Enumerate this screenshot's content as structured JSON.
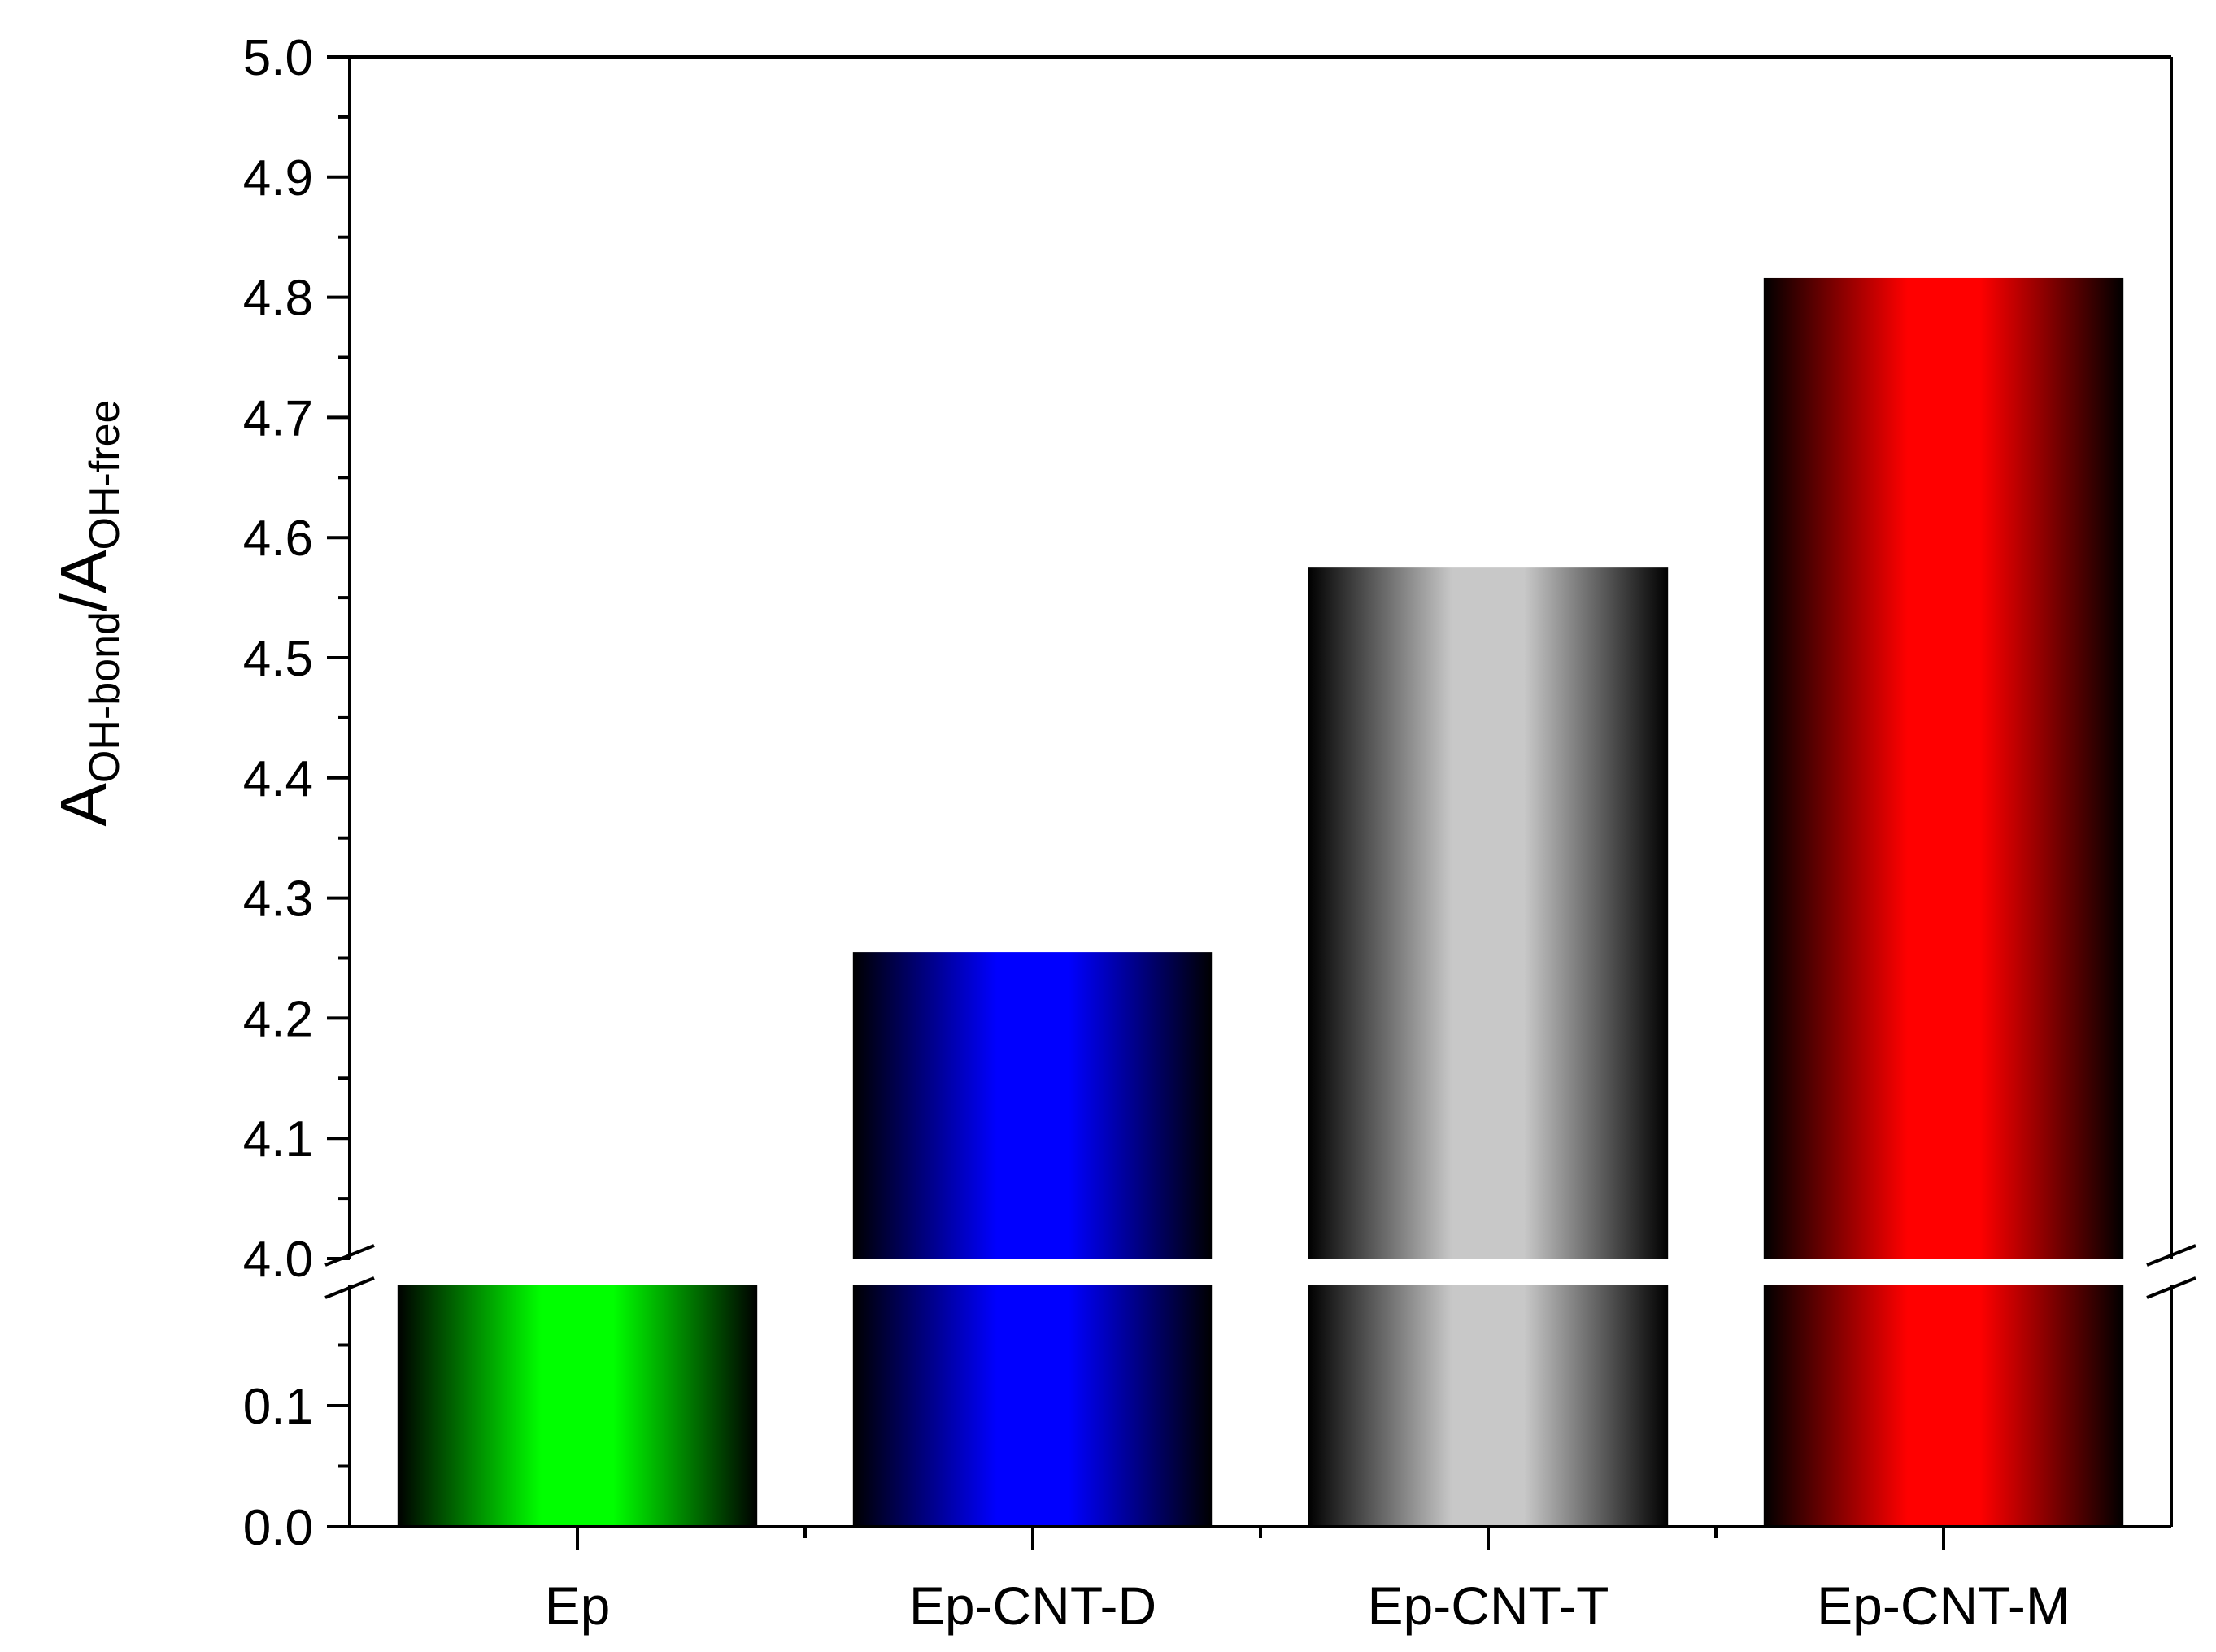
{
  "chart_data": {
    "type": "bar",
    "title": "",
    "xlabel": "",
    "ylabel": {
      "parts": [
        {
          "text": "A",
          "sub": false
        },
        {
          "text": "OH-bond",
          "sub": true
        },
        {
          "text": "/A",
          "sub": false
        },
        {
          "text": "OH-free",
          "sub": true
        }
      ]
    },
    "categories": [
      "Ep",
      "Ep-CNT-D",
      "Ep-CNT-T",
      "Ep-CNT-M"
    ],
    "values": [
      0.2,
      4.255,
      4.575,
      4.816
    ],
    "bar_colors": [
      "#00ff00",
      "#0000ff",
      "#c8c8c8",
      "#ff0000"
    ],
    "y_axis_break": true,
    "y_segments": [
      {
        "ylim": [
          0.0,
          0.2
        ],
        "tick_labels": [
          "0.0",
          "0.1"
        ]
      },
      {
        "ylim": [
          4.0,
          5.0
        ],
        "tick_labels": [
          "4.0",
          "4.1",
          "4.2",
          "4.3",
          "4.4",
          "4.5",
          "4.6",
          "4.7",
          "4.8",
          "4.9",
          "5.0"
        ]
      }
    ],
    "grid": false,
    "legend": "none"
  }
}
